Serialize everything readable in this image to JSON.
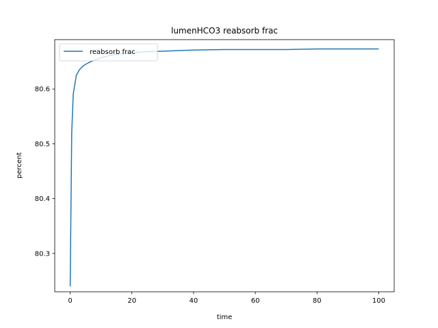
{
  "chart_data": {
    "type": "line",
    "title": "lumenHCO3 reabsorb frac",
    "xlabel": "time",
    "ylabel": "percent",
    "xlim": [
      -5,
      105
    ],
    "ylim": [
      80.23,
      80.69
    ],
    "xticks": [
      0,
      20,
      40,
      60,
      80,
      100
    ],
    "xtick_labels": [
      "0",
      "20",
      "40",
      "60",
      "80",
      "100"
    ],
    "yticks": [
      80.3,
      80.4,
      80.5,
      80.6
    ],
    "ytick_labels": [
      "80.3",
      "80.4",
      "80.5",
      "80.6"
    ],
    "grid": false,
    "legend_position": "top-left",
    "series": [
      {
        "name": "reabsorb frac",
        "color": "#1f77b4",
        "x": [
          0,
          0.5,
          1,
          2,
          3,
          4,
          5,
          6,
          8,
          10,
          12,
          15,
          20,
          25,
          30,
          40,
          50,
          60,
          70,
          80,
          90,
          100
        ],
        "y": [
          80.24,
          80.52,
          80.591,
          80.625,
          80.635,
          80.641,
          80.645,
          80.648,
          80.653,
          80.657,
          80.66,
          80.663,
          80.666,
          80.668,
          80.669,
          80.671,
          80.672,
          80.672,
          80.672,
          80.673,
          80.673,
          80.673
        ]
      }
    ]
  }
}
